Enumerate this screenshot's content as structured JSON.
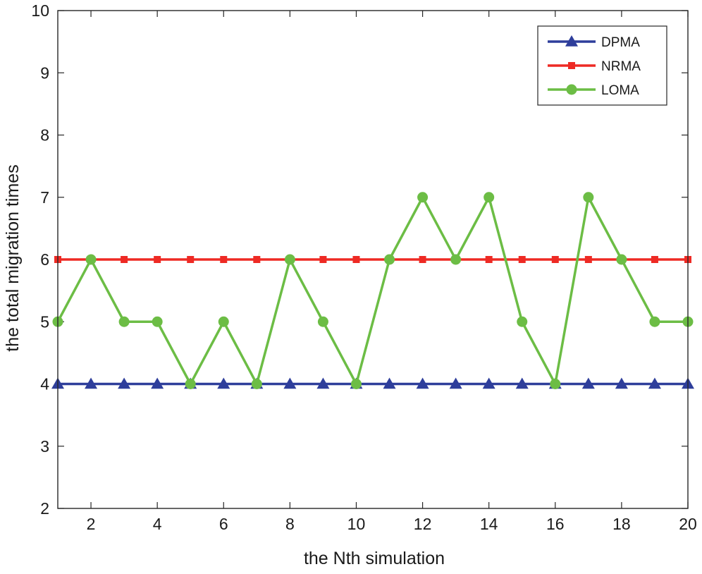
{
  "chart_data": {
    "type": "line",
    "title": "",
    "xlabel": "the Nth simulation",
    "ylabel": "the total migration times",
    "xlim": [
      1,
      20
    ],
    "ylim": [
      2,
      10
    ],
    "x_ticks": [
      2,
      4,
      6,
      8,
      10,
      12,
      14,
      16,
      18,
      20
    ],
    "y_ticks": [
      2,
      3,
      4,
      5,
      6,
      7,
      8,
      9,
      10
    ],
    "grid": false,
    "legend_position": "top-right",
    "x": [
      1,
      2,
      3,
      4,
      5,
      6,
      7,
      8,
      9,
      10,
      11,
      12,
      13,
      14,
      15,
      16,
      17,
      18,
      19,
      20
    ],
    "series": [
      {
        "name": "DPMA",
        "color": "#2e3e9b",
        "marker": "triangle",
        "values": [
          4,
          4,
          4,
          4,
          4,
          4,
          4,
          4,
          4,
          4,
          4,
          4,
          4,
          4,
          4,
          4,
          4,
          4,
          4,
          4
        ]
      },
      {
        "name": "NRMA",
        "color": "#ee2a24",
        "marker": "square",
        "values": [
          6,
          6,
          6,
          6,
          6,
          6,
          6,
          6,
          6,
          6,
          6,
          6,
          6,
          6,
          6,
          6,
          6,
          6,
          6,
          6
        ]
      },
      {
        "name": "LOMA",
        "color": "#6cbd45",
        "marker": "circle",
        "values": [
          5,
          6,
          5,
          5,
          4,
          5,
          4,
          6,
          5,
          4,
          6,
          7,
          6,
          7,
          5,
          4,
          7,
          6,
          5,
          5
        ]
      }
    ]
  }
}
